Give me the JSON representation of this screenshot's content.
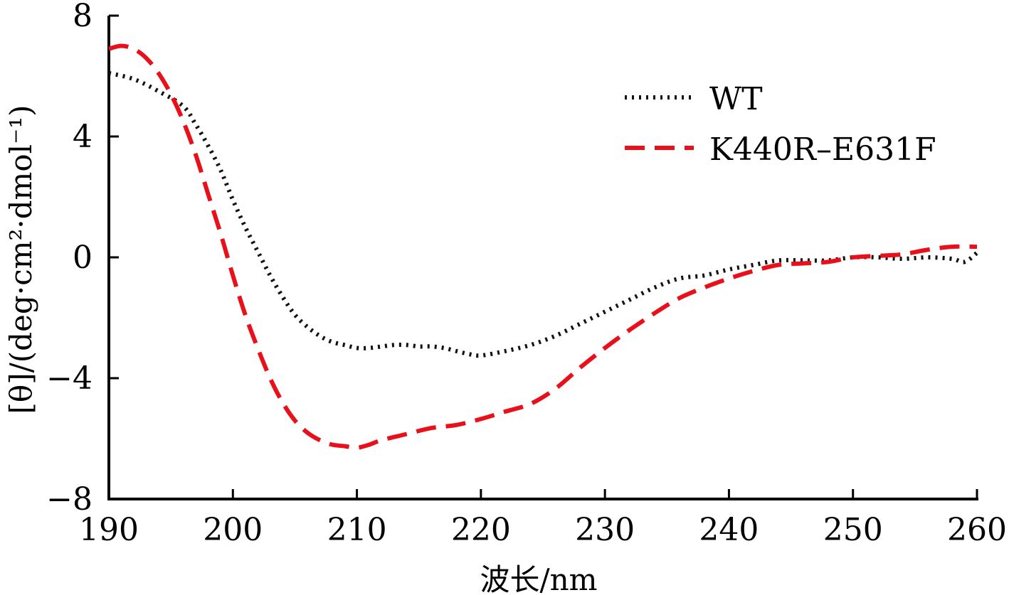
{
  "chart_data": {
    "type": "line",
    "xlabel": "波长/nm",
    "ylabel": "[θ]/(deg·cm²·dmol⁻¹)",
    "xlim": [
      190,
      260
    ],
    "ylim": [
      -8,
      8
    ],
    "x_ticks": [
      "190",
      "200",
      "210",
      "220",
      "230",
      "240",
      "250",
      "260"
    ],
    "y_ticks": [
      "−8",
      "−4",
      "0",
      "4",
      "8"
    ],
    "grid": false,
    "legend_position": "top-right",
    "series": [
      {
        "name": "WT",
        "style": "dotted",
        "color": "#111111",
        "x": [
          190,
          192,
          194,
          196,
          197,
          198,
          199,
          200,
          201,
          202,
          203,
          204,
          205,
          206,
          207,
          208,
          209,
          210,
          211,
          212,
          213,
          214,
          215,
          216,
          217,
          218,
          219,
          220,
          222,
          224,
          226,
          228,
          230,
          232,
          234,
          236,
          238,
          240,
          242,
          244,
          246,
          248,
          250,
          252,
          254,
          256,
          258,
          259,
          260
        ],
        "y": [
          6.1,
          5.9,
          5.5,
          5.0,
          4.4,
          3.7,
          2.9,
          1.9,
          1.0,
          0.2,
          -0.6,
          -1.3,
          -1.9,
          -2.3,
          -2.6,
          -2.8,
          -2.9,
          -3.0,
          -3.0,
          -2.95,
          -2.9,
          -2.9,
          -2.95,
          -2.95,
          -3.0,
          -3.1,
          -3.2,
          -3.25,
          -3.1,
          -2.9,
          -2.6,
          -2.2,
          -1.8,
          -1.4,
          -1.0,
          -0.7,
          -0.6,
          -0.4,
          -0.25,
          -0.1,
          -0.1,
          -0.1,
          0.0,
          0.0,
          -0.05,
          0.0,
          -0.05,
          -0.15,
          0.15
        ]
      },
      {
        "name": "K440R–E631F",
        "style": "dashed",
        "color": "#e8101a",
        "x": [
          190,
          191,
          192,
          193,
          194,
          195,
          196,
          197,
          198,
          199,
          200,
          201,
          202,
          203,
          204,
          205,
          206,
          207,
          208,
          209,
          210,
          211,
          212,
          214,
          216,
          218,
          220,
          222,
          224,
          226,
          228,
          230,
          232,
          234,
          236,
          238,
          240,
          242,
          244,
          246,
          248,
          250,
          252,
          254,
          256,
          258,
          260
        ],
        "y": [
          6.9,
          7.0,
          6.9,
          6.6,
          6.1,
          5.4,
          4.5,
          3.4,
          2.1,
          0.8,
          -0.6,
          -1.9,
          -3.0,
          -4.0,
          -4.8,
          -5.4,
          -5.8,
          -6.05,
          -6.2,
          -6.25,
          -6.3,
          -6.2,
          -6.05,
          -5.85,
          -5.65,
          -5.55,
          -5.35,
          -5.1,
          -4.85,
          -4.35,
          -3.65,
          -3.0,
          -2.4,
          -1.85,
          -1.35,
          -1.0,
          -0.7,
          -0.45,
          -0.25,
          -0.2,
          -0.15,
          0.0,
          0.05,
          0.1,
          0.25,
          0.35,
          0.35
        ]
      }
    ]
  }
}
